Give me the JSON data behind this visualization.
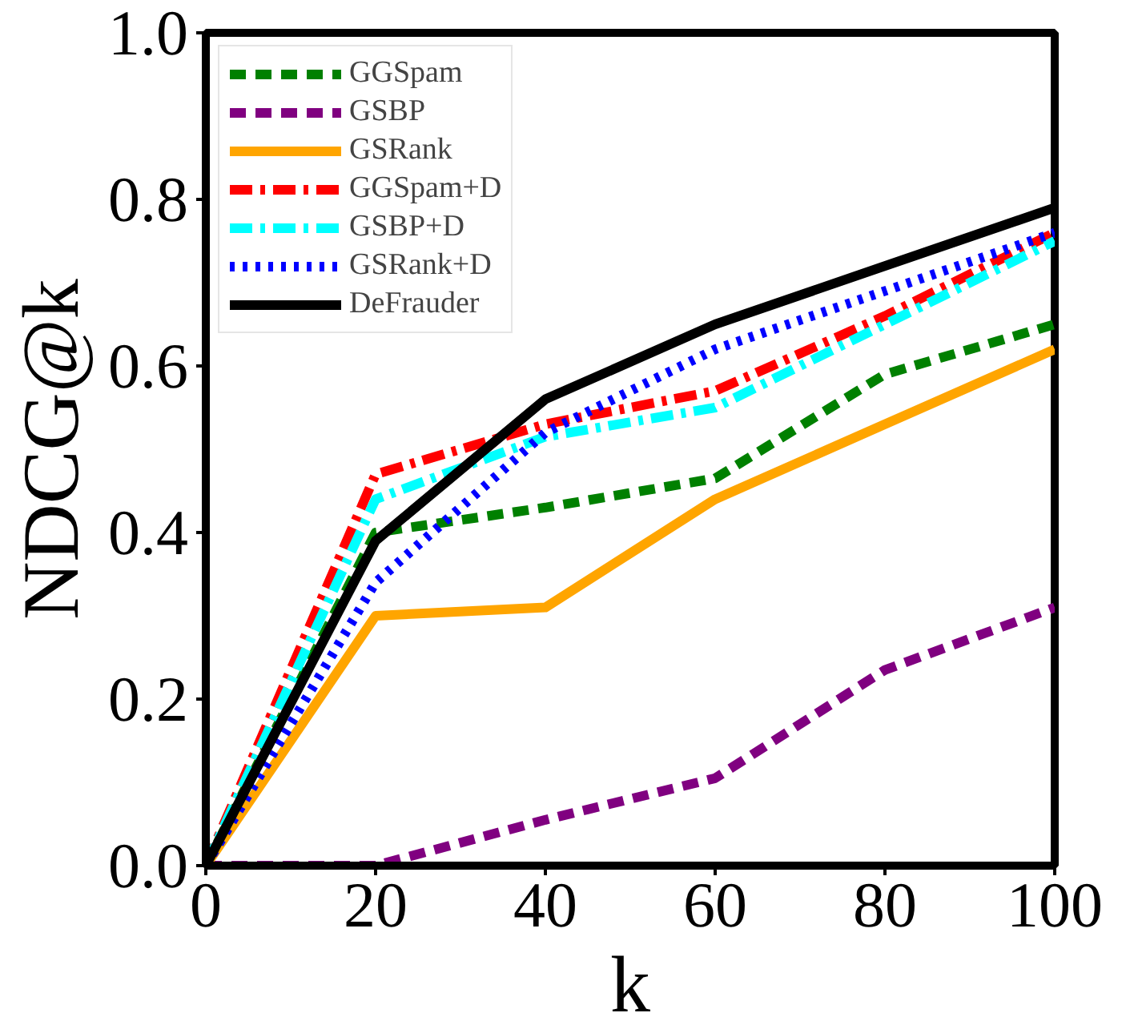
{
  "chart_data": {
    "type": "line",
    "xlabel": "k",
    "ylabel": "NDCG@k",
    "x": [
      0,
      20,
      40,
      60,
      80,
      100
    ],
    "xlim": [
      0,
      100
    ],
    "ylim": [
      0,
      1.0
    ],
    "xticks": [
      0,
      20,
      40,
      60,
      80,
      100
    ],
    "yticks": [
      {
        "value": 0,
        "label": "0.0"
      },
      0.2,
      0.4,
      0.6,
      0.8,
      {
        "value": 1,
        "label": "1.0"
      }
    ],
    "grid": false,
    "legend": "top left",
    "marker": "none",
    "series": [
      {
        "name": "GGSpam",
        "color": "#008000",
        "line_style": "dashed",
        "values": [
          0,
          0.4,
          0.43,
          0.465,
          0.59,
          0.65
        ]
      },
      {
        "name": "GSBP",
        "color": "#800080",
        "line_style": "dashed",
        "values": [
          0,
          0,
          0.055,
          0.105,
          0.235,
          0.31
        ]
      },
      {
        "name": "GSRank",
        "color": "#ffa500",
        "line_style": "solid",
        "values": [
          0,
          0.3,
          0.31,
          0.44,
          0.53,
          0.62
        ]
      },
      {
        "name": "GGSpam+D",
        "color": "#ff0000",
        "line_style": "dashdot",
        "values": [
          0,
          0.47,
          0.53,
          0.57,
          0.66,
          0.76
        ]
      },
      {
        "name": "GSBP+D",
        "color": "#00ffff",
        "line_style": "dashdot",
        "values": [
          0,
          0.44,
          0.515,
          0.55,
          0.65,
          0.75
        ]
      },
      {
        "name": "GSRank+D",
        "color": "#0000ff",
        "line_style": "dotted",
        "values": [
          0,
          0.34,
          0.52,
          0.62,
          0.69,
          0.76
        ]
      },
      {
        "name": "DeFrauder",
        "color": "#000000",
        "line_style": "solid",
        "values": [
          0,
          0.39,
          0.56,
          0.65,
          0.72,
          0.79
        ]
      }
    ]
  }
}
